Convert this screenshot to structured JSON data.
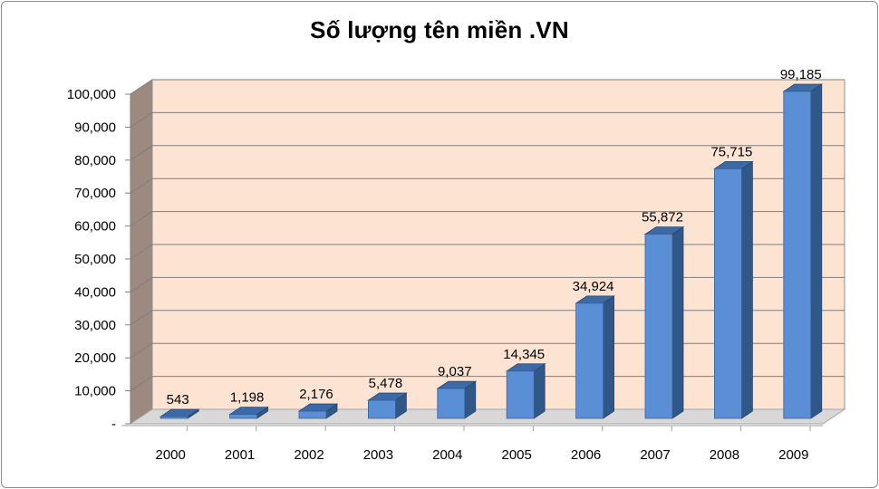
{
  "chart_data": {
    "type": "bar",
    "title": "Số lượng tên miền .VN",
    "xlabel": "",
    "ylabel": "",
    "categories": [
      "2000",
      "2001",
      "2002",
      "2003",
      "2004",
      "2005",
      "2006",
      "2007",
      "2008",
      "2009"
    ],
    "values": [
      543,
      1198,
      2176,
      5478,
      9037,
      14345,
      34924,
      55872,
      75715,
      99185
    ],
    "value_labels": [
      "543",
      "1,198",
      "2,176",
      "5,478",
      "9,037",
      "14,345",
      "34,924",
      "55,872",
      "75,715",
      "99,185"
    ],
    "ylim": [
      0,
      100000
    ],
    "yticks": [
      0,
      10000,
      20000,
      30000,
      40000,
      50000,
      60000,
      70000,
      80000,
      90000,
      100000
    ],
    "ytick_labels": [
      "-",
      "10,000",
      "20,000",
      "30,000",
      "40,000",
      "50,000",
      "60,000",
      "70,000",
      "80,000",
      "90,000",
      "100,000"
    ],
    "grid": true,
    "legend": "none",
    "style": "3d-column",
    "colors": {
      "bar_front": "#5a8fd6",
      "bar_side": "#2f5788",
      "bar_top": "#3a6aa8",
      "wall_back": "#fde4d2",
      "wall_side": "#9c8a80",
      "floor": "#d8d8d8",
      "grid": "#7f7f7f"
    }
  }
}
